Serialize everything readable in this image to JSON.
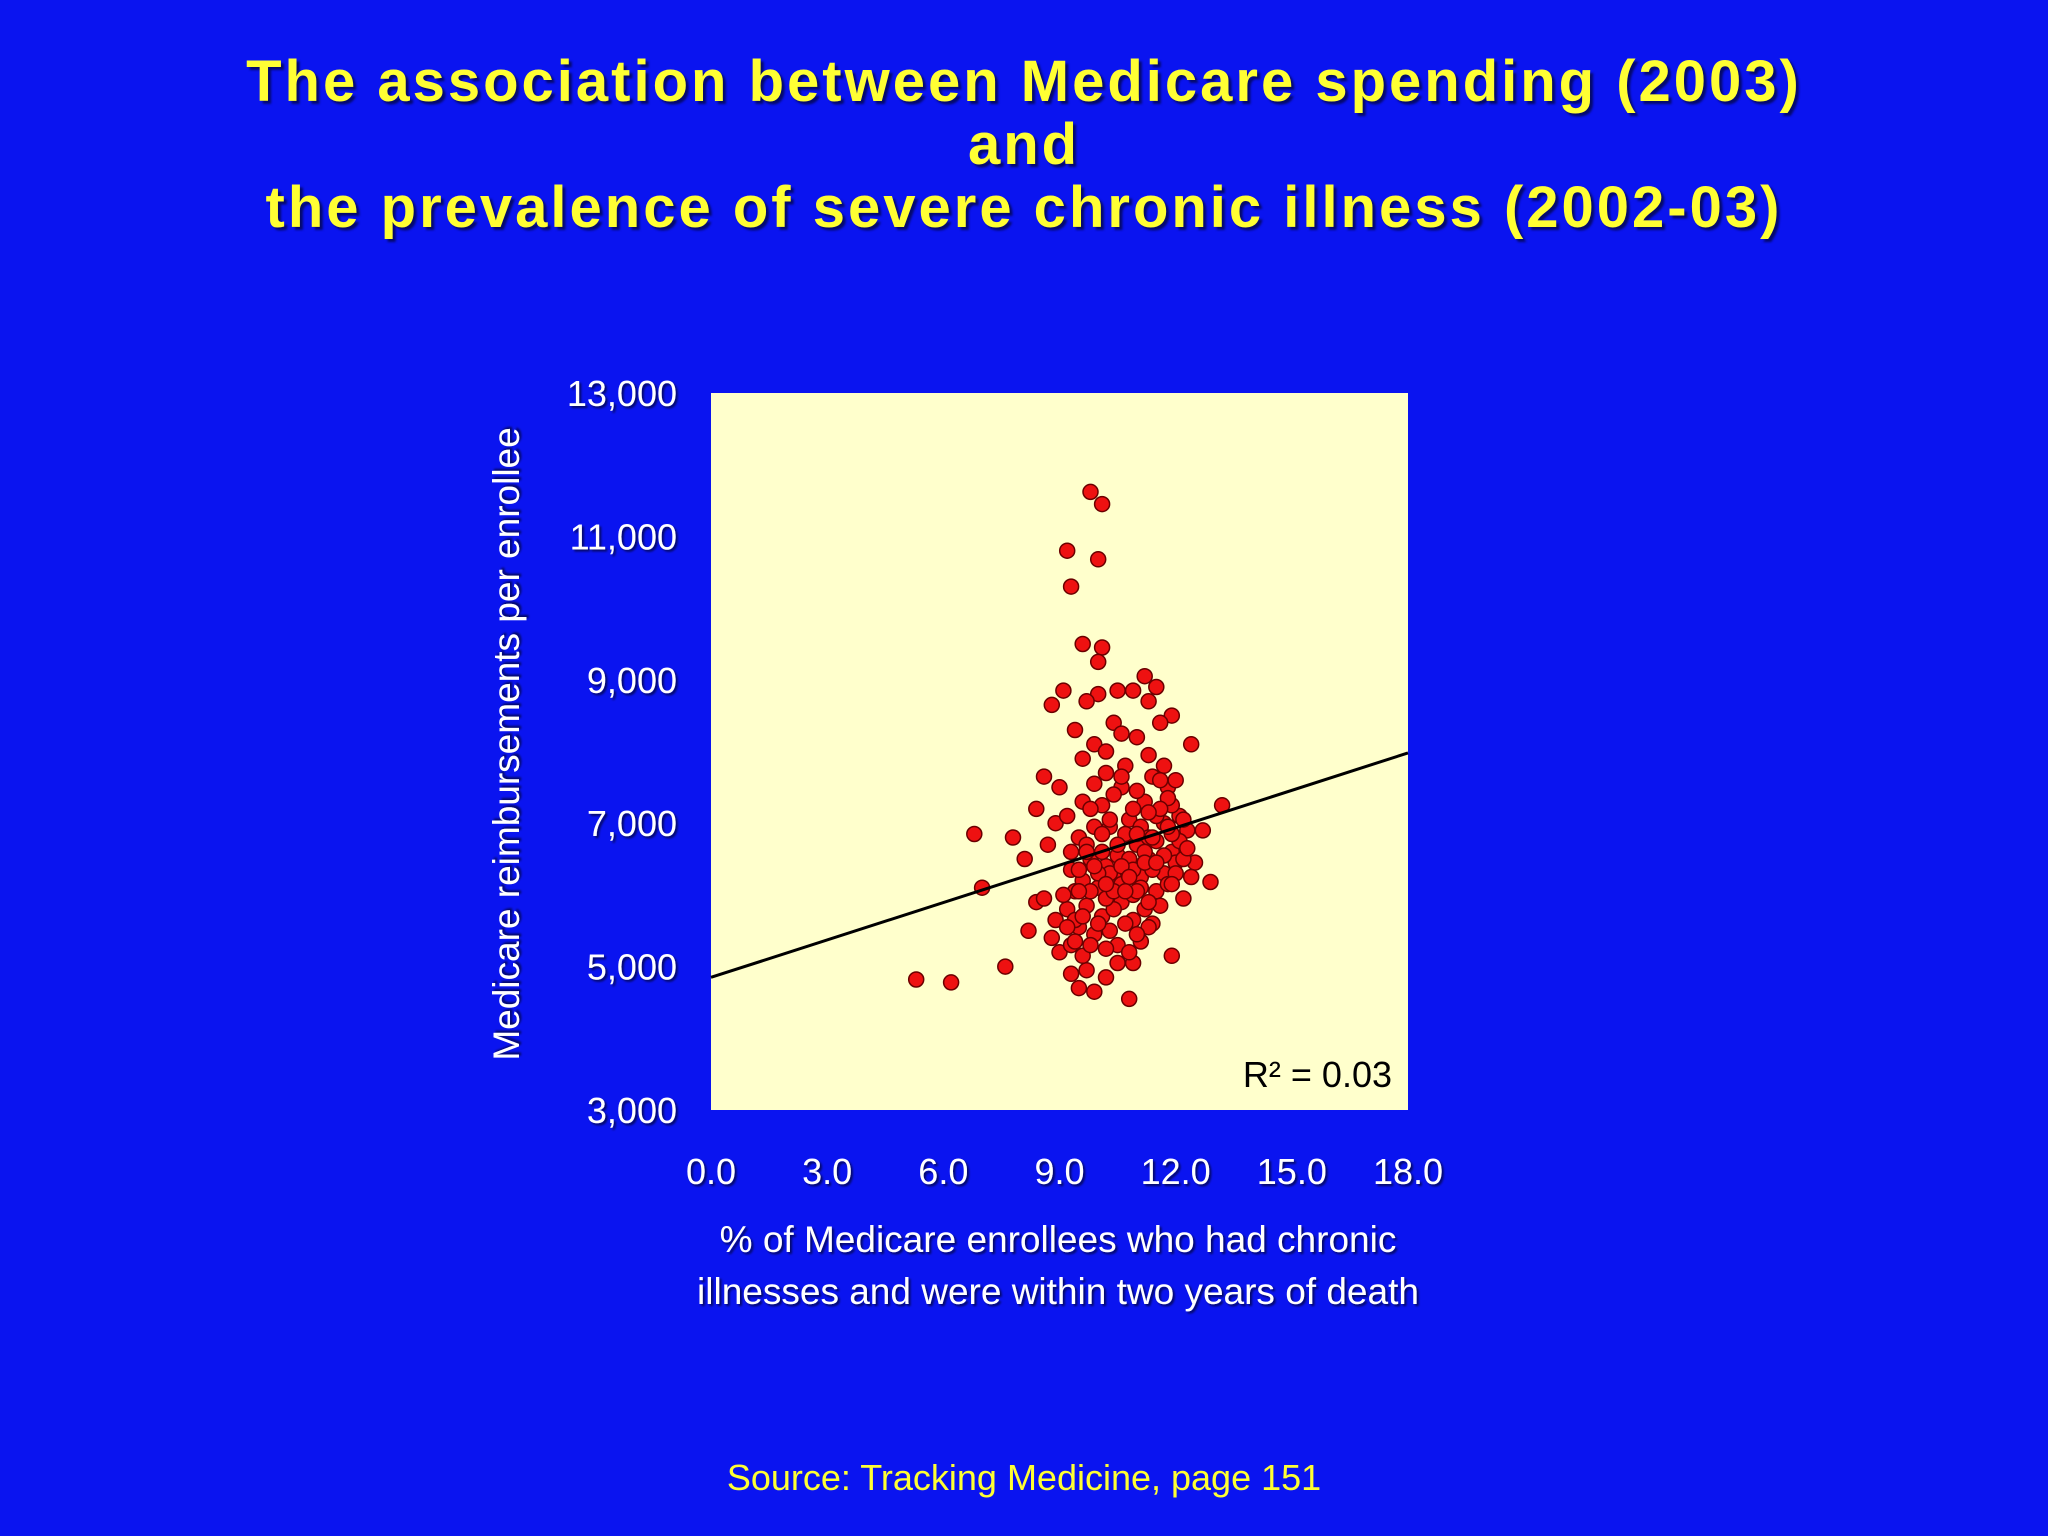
{
  "title_lines": [
    "The association between Medicare spending (2003)",
    "and",
    "the prevalence of severe chronic illness (2002-03)"
  ],
  "source": "Source: Tracking Medicine, page 151",
  "colors": {
    "background": "#0a14f0",
    "title": "#ffff33",
    "plot_area": "#ffffcc",
    "points": "#ee1111",
    "trend_line": "#000000"
  },
  "chart_data": {
    "type": "scatter",
    "xlabel_lines": [
      "% of Medicare enrollees who had chronic",
      "illnesses and were within two years of death"
    ],
    "ylabel": "Medicare reimbursements per enrollee",
    "xlim": [
      0,
      18
    ],
    "ylim": [
      3000,
      13000
    ],
    "x_ticks": [
      "0.0",
      "3.0",
      "6.0",
      "9.0",
      "12.0",
      "15.0",
      "18.0"
    ],
    "y_ticks": [
      "3,000",
      "5,000",
      "7,000",
      "9,000",
      "11,000",
      "13,000"
    ],
    "annotation": "R² = 0.03",
    "trendline": {
      "x": [
        0,
        18
      ],
      "y": [
        4850,
        7980
      ]
    },
    "points": [
      [
        5.3,
        4820
      ],
      [
        6.2,
        4780
      ],
      [
        6.8,
        6850
      ],
      [
        7.0,
        6100
      ],
      [
        7.6,
        5000
      ],
      [
        7.8,
        6800
      ],
      [
        8.1,
        6500
      ],
      [
        8.4,
        5900
      ],
      [
        8.7,
        6700
      ],
      [
        8.9,
        7000
      ],
      [
        8.2,
        5500
      ],
      [
        8.6,
        5950
      ],
      [
        8.4,
        7200
      ],
      [
        8.6,
        7650
      ],
      [
        8.8,
        8650
      ],
      [
        9.0,
        7500
      ],
      [
        8.8,
        5400
      ],
      [
        9.0,
        5200
      ],
      [
        9.1,
        8850
      ],
      [
        9.2,
        10800
      ],
      [
        9.3,
        10300
      ],
      [
        9.6,
        9500
      ],
      [
        9.8,
        11620
      ],
      [
        10.1,
        11450
      ],
      [
        10.0,
        10680
      ],
      [
        10.1,
        9450
      ],
      [
        10.0,
        9250
      ],
      [
        10.0,
        8800
      ],
      [
        9.4,
        8300
      ],
      [
        9.7,
        8700
      ],
      [
        9.6,
        7900
      ],
      [
        9.9,
        8100
      ],
      [
        10.2,
        8000
      ],
      [
        10.4,
        8400
      ],
      [
        10.6,
        8250
      ],
      [
        10.5,
        8850
      ],
      [
        10.9,
        8850
      ],
      [
        11.2,
        9050
      ],
      [
        11.5,
        8900
      ],
      [
        11.9,
        8500
      ],
      [
        11.3,
        8700
      ],
      [
        11.0,
        8200
      ],
      [
        11.6,
        8400
      ],
      [
        12.4,
        8100
      ],
      [
        12.9,
        6180
      ],
      [
        13.2,
        7250
      ],
      [
        12.7,
        6900
      ],
      [
        12.5,
        6450
      ],
      [
        12.2,
        5950
      ],
      [
        11.9,
        5150
      ],
      [
        11.4,
        5600
      ],
      [
        11.1,
        5350
      ],
      [
        10.9,
        5050
      ],
      [
        10.8,
        4550
      ],
      [
        10.2,
        4850
      ],
      [
        9.9,
        4650
      ],
      [
        9.5,
        4700
      ],
      [
        9.3,
        4900
      ],
      [
        9.7,
        4950
      ],
      [
        8.9,
        5650
      ],
      [
        9.2,
        5800
      ],
      [
        9.4,
        6050
      ],
      [
        9.3,
        6350
      ],
      [
        9.6,
        6200
      ],
      [
        9.8,
        6500
      ],
      [
        9.5,
        6800
      ],
      [
        9.2,
        7100
      ],
      [
        9.6,
        7300
      ],
      [
        9.9,
        7550
      ],
      [
        10.1,
        7250
      ],
      [
        10.3,
        6950
      ],
      [
        10.6,
        7500
      ],
      [
        10.8,
        7050
      ],
      [
        11.0,
        6700
      ],
      [
        11.2,
        7300
      ],
      [
        11.4,
        7650
      ],
      [
        11.7,
        7800
      ],
      [
        11.8,
        7500
      ],
      [
        12.1,
        7100
      ],
      [
        12.3,
        6900
      ],
      [
        11.9,
        6600
      ],
      [
        11.7,
        6300
      ],
      [
        11.5,
        6050
      ],
      [
        11.2,
        5800
      ],
      [
        10.9,
        5650
      ],
      [
        10.6,
        5900
      ],
      [
        10.4,
        6250
      ],
      [
        10.2,
        6400
      ],
      [
        10.0,
        6100
      ],
      [
        9.7,
        5850
      ],
      [
        9.5,
        5550
      ],
      [
        9.3,
        5300
      ],
      [
        9.6,
        5150
      ],
      [
        9.9,
        5450
      ],
      [
        10.1,
        5700
      ],
      [
        10.3,
        5500
      ],
      [
        10.5,
        5300
      ],
      [
        10.7,
        5600
      ],
      [
        10.9,
        6000
      ],
      [
        11.1,
        6250
      ],
      [
        11.3,
        6500
      ],
      [
        11.5,
        6750
      ],
      [
        11.7,
        7000
      ],
      [
        11.9,
        7250
      ],
      [
        12.1,
        6750
      ],
      [
        12.0,
        6450
      ],
      [
        11.8,
        6150
      ],
      [
        11.6,
        5850
      ],
      [
        11.3,
        5550
      ],
      [
        11.0,
        5450
      ],
      [
        10.8,
        5200
      ],
      [
        10.5,
        5050
      ],
      [
        10.2,
        5250
      ],
      [
        10.0,
        5600
      ],
      [
        9.8,
        5300
      ],
      [
        9.4,
        5650
      ],
      [
        9.1,
        6000
      ],
      [
        9.3,
        6600
      ],
      [
        9.5,
        6350
      ],
      [
        9.7,
        6700
      ],
      [
        9.9,
        6950
      ],
      [
        10.1,
        6600
      ],
      [
        10.3,
        6300
      ],
      [
        10.5,
        6550
      ],
      [
        10.7,
        6850
      ],
      [
        10.9,
        7200
      ],
      [
        11.1,
        6950
      ],
      [
        11.3,
        6800
      ],
      [
        11.5,
        7100
      ],
      [
        11.7,
        6550
      ],
      [
        11.9,
        6850
      ],
      [
        12.2,
        6500
      ],
      [
        12.4,
        6250
      ],
      [
        11.4,
        6350
      ],
      [
        11.2,
        6600
      ],
      [
        11.0,
        6850
      ],
      [
        10.8,
        6500
      ],
      [
        10.6,
        6150
      ],
      [
        10.4,
        5800
      ],
      [
        10.2,
        5950
      ],
      [
        10.0,
        6300
      ],
      [
        9.8,
        6050
      ],
      [
        9.6,
        5700
      ],
      [
        9.4,
        5350
      ],
      [
        9.2,
        5550
      ],
      [
        10.7,
        7800
      ],
      [
        10.4,
        7400
      ],
      [
        10.2,
        7700
      ],
      [
        9.8,
        7200
      ],
      [
        10.6,
        7650
      ],
      [
        11.0,
        7450
      ],
      [
        11.3,
        7950
      ],
      [
        11.6,
        7600
      ],
      [
        11.8,
        7350
      ],
      [
        12.0,
        7600
      ],
      [
        12.2,
        7050
      ],
      [
        12.3,
        6650
      ],
      [
        10.9,
        6350
      ],
      [
        11.1,
        6100
      ],
      [
        11.3,
        5900
      ],
      [
        10.5,
        6700
      ],
      [
        10.3,
        7050
      ],
      [
        10.1,
        6850
      ],
      [
        9.9,
        6400
      ],
      [
        10.6,
        6400
      ],
      [
        10.8,
        6250
      ],
      [
        11.0,
        6050
      ],
      [
        11.2,
        6450
      ],
      [
        11.4,
        6800
      ],
      [
        11.6,
        7200
      ],
      [
        11.8,
        6950
      ],
      [
        12.0,
        6300
      ],
      [
        11.5,
        6450
      ],
      [
        11.9,
        6150
      ],
      [
        10.4,
        6050
      ],
      [
        9.7,
        6600
      ],
      [
        9.5,
        6050
      ],
      [
        10.2,
        6150
      ],
      [
        10.7,
        6050
      ],
      [
        11.3,
        7150
      ]
    ]
  }
}
